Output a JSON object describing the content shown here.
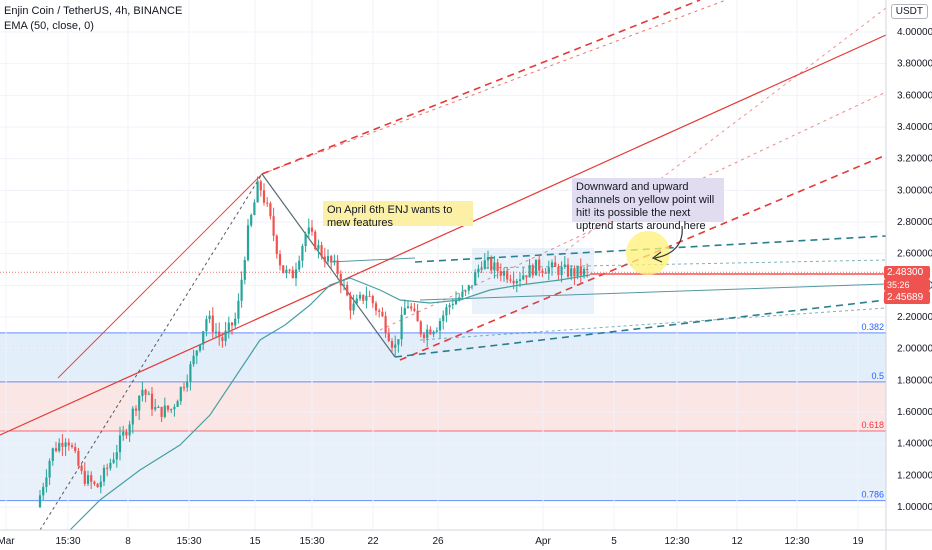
{
  "header": {
    "symbol": "Enjin Coin / TetherUS, 4h, BINANCE",
    "indicator": "EMA (50, close, 0)"
  },
  "currency_button": "USDT",
  "annotations": {
    "note1": "On April 6th ENJ wants to mew features",
    "note2": "Downward and upward channels on yellow point will hit! its possible the next uptrend starts around here"
  },
  "price_tags": {
    "last": "2.48300",
    "countdown": "35:26",
    "ema": "2.45689"
  },
  "colors": {
    "up": "#26a69a",
    "down": "#ef5350",
    "ema": "#4a9fa0",
    "channel": "#e53935",
    "teal_channel": "#2b7f8c",
    "fib_blue": "#2962ff",
    "fib_red": "#f23645",
    "note_bg": "#fbf0a6",
    "note2_bg": "#e1dcef",
    "yellow_point": "#fff176"
  },
  "chart_data": {
    "type": "candlestick",
    "title": "",
    "y_axis": {
      "ticks": [
        "4.00000",
        "3.80000",
        "3.60000",
        "3.40000",
        "3.20000",
        "3.00000",
        "2.80000",
        "2.60000",
        "2.40000",
        "2.20000",
        "2.00000",
        "1.80000",
        "1.60000",
        "1.40000",
        "1.20000",
        "1.00000"
      ],
      "range": [
        0.95,
        4.1
      ]
    },
    "x_axis": {
      "ticks": [
        "Mar",
        "15:30",
        "8",
        "15:30",
        "15",
        "15:30",
        "22",
        "26",
        "Apr",
        "5",
        "12:30",
        "12",
        "12:30",
        "19"
      ]
    },
    "fib_levels": [
      {
        "label": "0.382",
        "value": 2.1
      },
      {
        "label": "0.5",
        "value": 1.79
      },
      {
        "label": "0.618",
        "value": 1.48
      },
      {
        "label": "0.786",
        "value": 1.04
      }
    ],
    "last_price": 2.483,
    "ema_value": 2.45689
  }
}
